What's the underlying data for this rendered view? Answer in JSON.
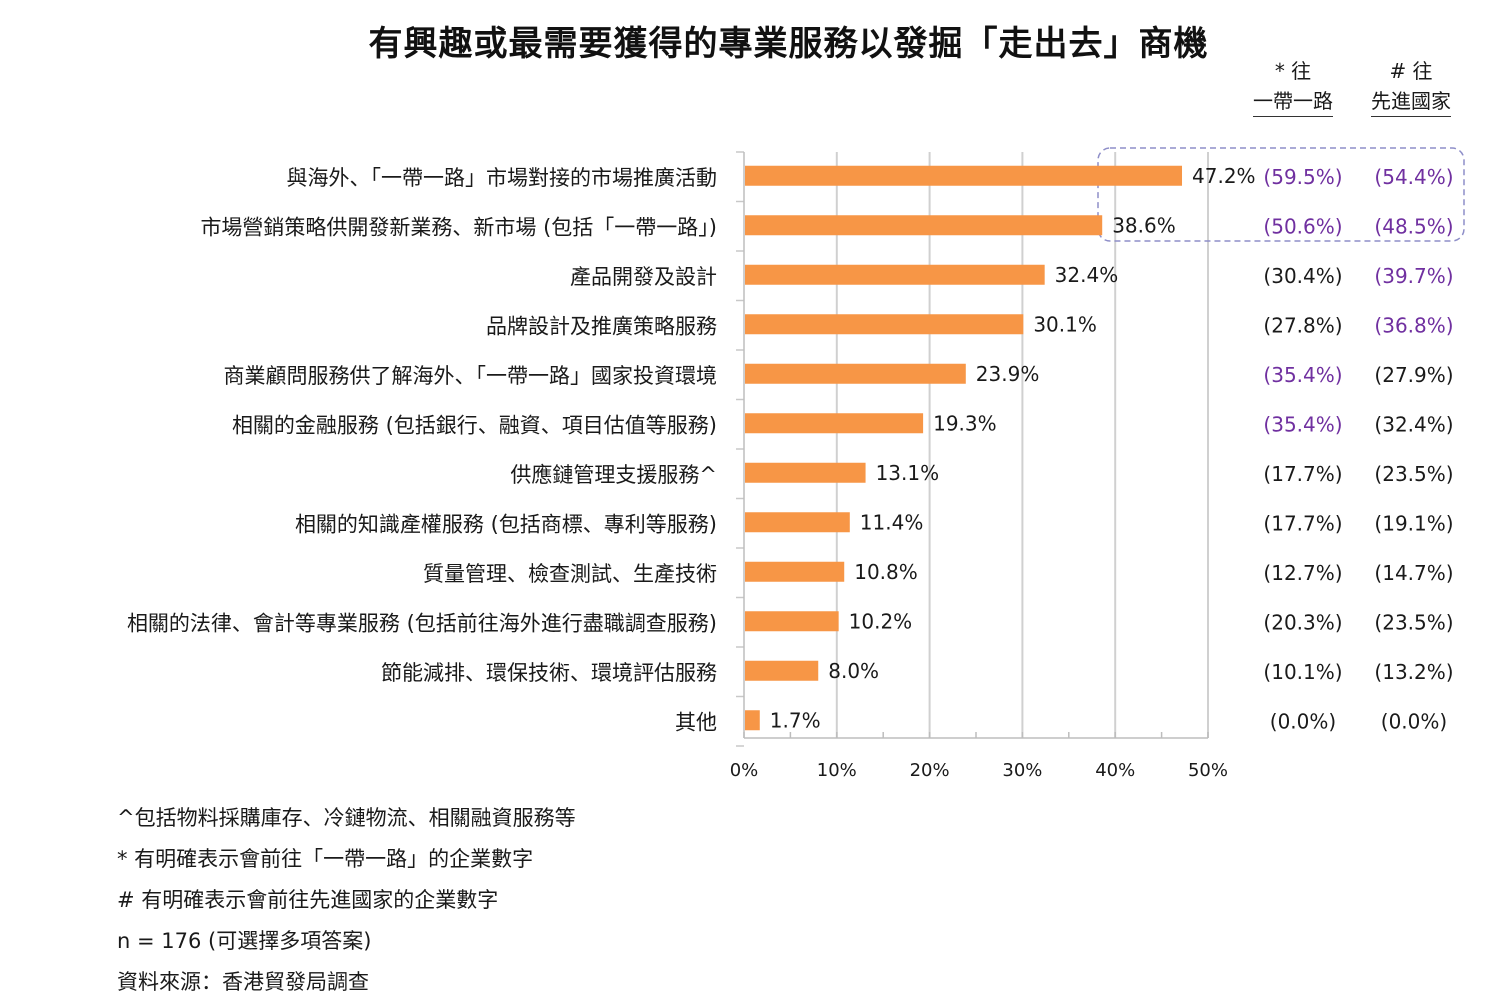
{
  "chart_data": {
    "type": "bar",
    "orientation": "horizontal",
    "title": "有興趣或最需要獲得的專業服務以發掘「走出去」商機",
    "categories": [
      "與海外、「一帶一路」市場對接的市場推廣活動",
      "市場營銷策略供開發新業務、新市場 (包括「一帶一路」)",
      "產品開發及設計",
      "品牌設計及推廣策略服務",
      "商業顧問服務供了解海外、「一帶一路」國家投資環境",
      "相關的金融服務 (包括銀行、融資、項目估值等服務)",
      "供應鏈管理支援服務^",
      "相關的知識產權服務 (包括商標、專利等服務)",
      "質量管理、檢查測試、生產技術",
      "相關的法律、會計等專業服務 (包括前往海外進行盡職調查服務)",
      "節能減排、環保技術、環境評估服務",
      "其他"
    ],
    "values": [
      47.2,
      38.6,
      32.4,
      30.1,
      23.9,
      19.3,
      13.1,
      11.4,
      10.8,
      10.2,
      8.0,
      1.7
    ],
    "data_labels": [
      "47.2%",
      "38.6%",
      "32.4%",
      "30.1%",
      "23.9%",
      "19.3%",
      "13.1%",
      "11.4%",
      "10.8%",
      "10.2%",
      "8.0%",
      "1.7%"
    ],
    "xlim": [
      0,
      50
    ],
    "xticks": [
      0,
      10,
      20,
      30,
      40,
      50
    ],
    "xtick_labels": [
      "0%",
      "10%",
      "20%",
      "30%",
      "40%",
      "50%"
    ],
    "bar_color": "#F79646",
    "grid": true,
    "columns": [
      {
        "key": "belt_road",
        "mark": "* 往",
        "name": "一帶一路",
        "values": [
          59.5,
          50.6,
          30.4,
          27.8,
          35.4,
          35.4,
          17.7,
          17.7,
          12.7,
          20.3,
          10.1,
          0.0
        ],
        "labels": [
          "(59.5%)",
          "(50.6%)",
          "(30.4%)",
          "(27.8%)",
          "(35.4%)",
          "(35.4%)",
          "(17.7%)",
          "(17.7%)",
          "(12.7%)",
          "(20.3%)",
          "(10.1%)",
          "(0.0%)"
        ],
        "highlight": [
          true,
          true,
          false,
          false,
          true,
          true,
          false,
          false,
          false,
          false,
          false,
          false
        ]
      },
      {
        "key": "advanced",
        "mark": "# 往",
        "name": "先進國家",
        "values": [
          54.4,
          48.5,
          39.7,
          36.8,
          27.9,
          32.4,
          23.5,
          19.1,
          14.7,
          23.5,
          13.2,
          0.0
        ],
        "labels": [
          "(54.4%)",
          "(48.5%)",
          "(39.7%)",
          "(36.8%)",
          "(27.9%)",
          "(32.4%)",
          "(23.5%)",
          "(19.1%)",
          "(14.7%)",
          "(23.5%)",
          "(13.2%)",
          "(0.0%)"
        ],
        "highlight": [
          true,
          true,
          true,
          true,
          false,
          false,
          false,
          false,
          false,
          false,
          false,
          false
        ]
      }
    ],
    "highlight_color": "#7030A0",
    "box_color": "#8E8EC8"
  },
  "notes": [
    "^包括物料採購庫存、冷鏈物流、相關融資服務等",
    "* 有明確表示會前往「一帶一路」的企業數字",
    "# 有明確表示會前往先進國家的企業數字",
    "n = 176 (可選擇多項答案)",
    "資料來源：香港貿發局調查"
  ]
}
